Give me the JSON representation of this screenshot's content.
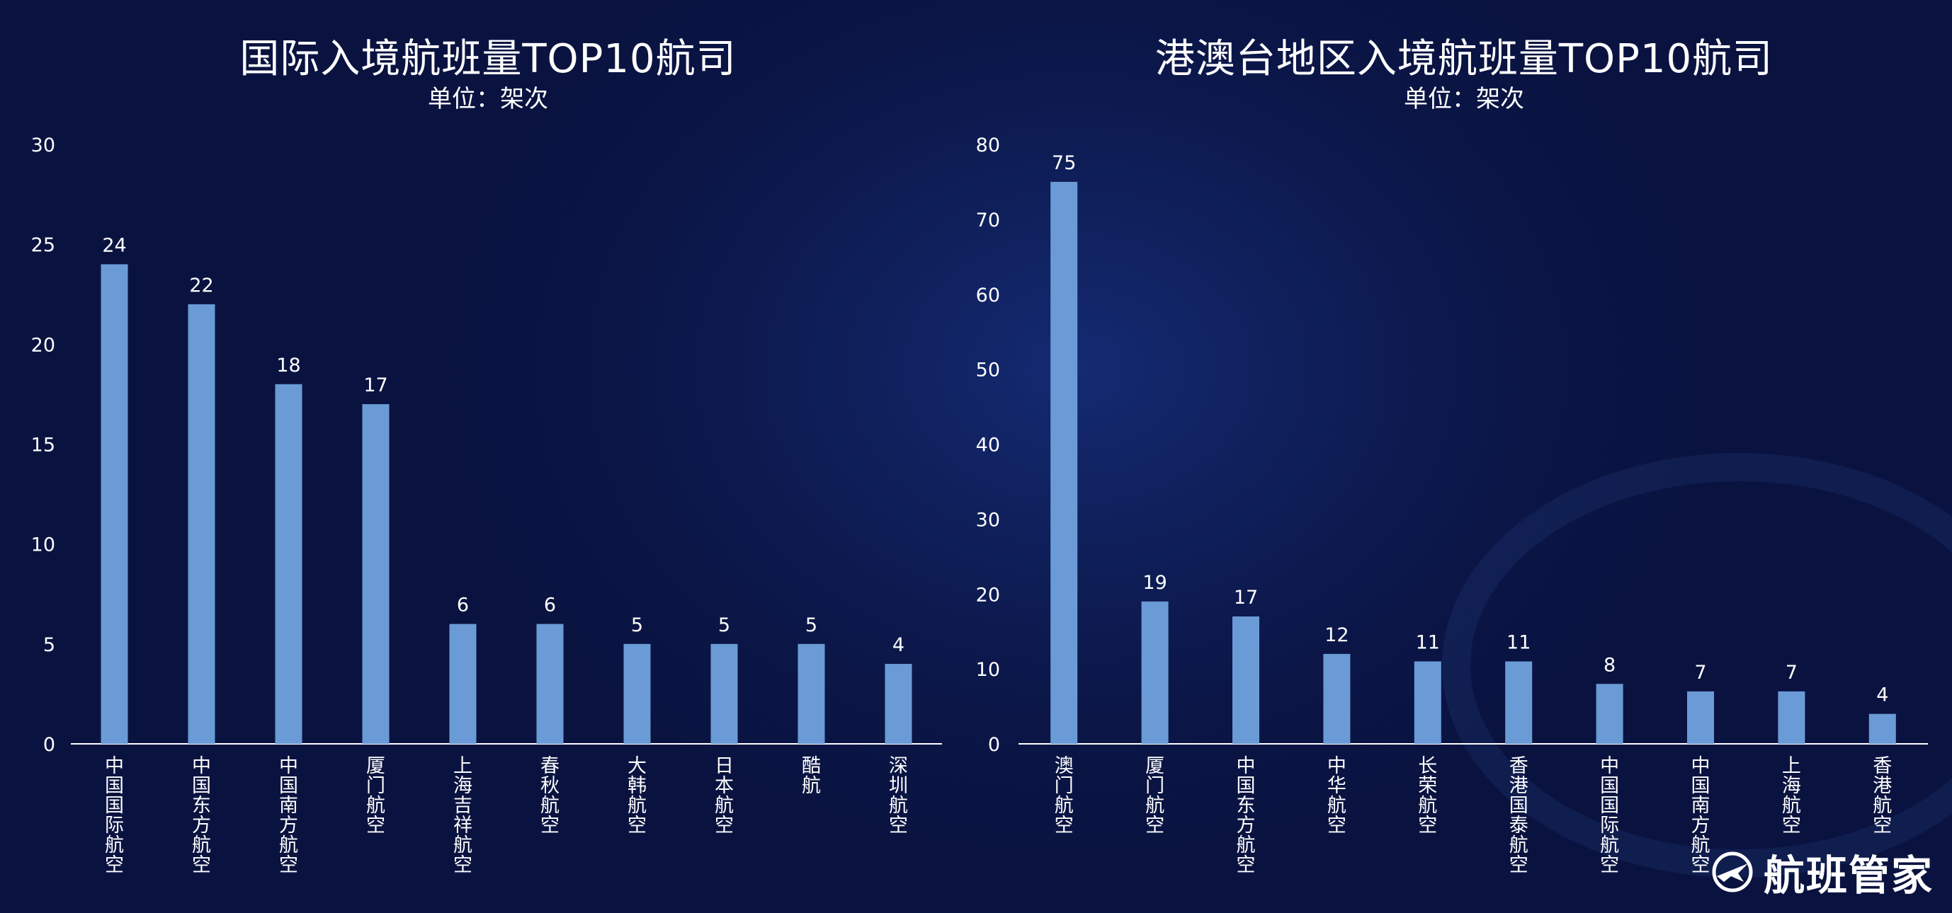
{
  "charts": [
    {
      "title": "国际入境航班量TOP10航司",
      "subtitle": "单位：架次"
    },
    {
      "title": "港澳台地区入境航班量TOP10航司",
      "subtitle": "单位：架次"
    }
  ],
  "watermark": {
    "text": "航班管家",
    "icon": "airplane-logo-icon"
  },
  "colors": {
    "bar": "#6b9bd6",
    "axis": "#ffffff",
    "background": "#0b1647"
  },
  "chart_data": [
    {
      "type": "bar",
      "title": "国际入境航班量TOP10航司",
      "subtitle": "单位：架次",
      "categories": [
        "中国国际航空",
        "中国东方航空",
        "中国南方航空",
        "厦门航空",
        "上海吉祥航空",
        "春秋航空",
        "大韩航空",
        "日本航空",
        "酷航",
        "深圳航空"
      ],
      "values": [
        24,
        22,
        18,
        17,
        6,
        6,
        5,
        5,
        5,
        4
      ],
      "ylim": [
        0,
        30
      ],
      "yticks": [
        0,
        5,
        10,
        15,
        20,
        25,
        30
      ],
      "grid": false,
      "data_labels": true
    },
    {
      "type": "bar",
      "title": "港澳台地区入境航班量TOP10航司",
      "subtitle": "单位：架次",
      "categories": [
        "澳门航空",
        "厦门航空",
        "中国东方航空",
        "中华航空",
        "长荣航空",
        "香港国泰航空",
        "中国国际航空",
        "中国南方航空",
        "上海航空",
        "香港航空"
      ],
      "values": [
        75,
        19,
        17,
        12,
        11,
        11,
        8,
        7,
        7,
        4
      ],
      "ylim": [
        0,
        80
      ],
      "yticks": [
        0,
        10,
        20,
        30,
        40,
        50,
        60,
        70,
        80
      ],
      "grid": false,
      "data_labels": true
    }
  ]
}
